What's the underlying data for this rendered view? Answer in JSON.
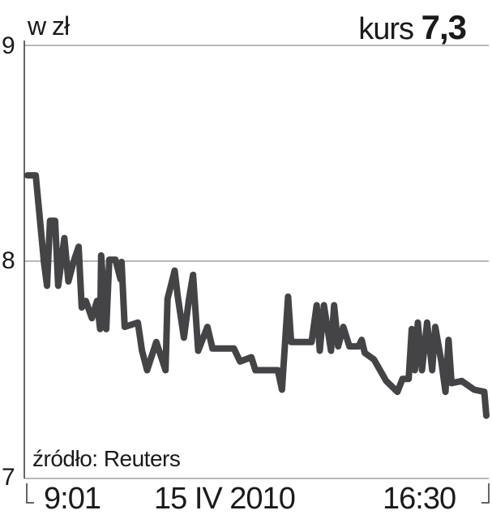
{
  "chart_data": {
    "type": "line",
    "title": "kurs 7,3",
    "title_prefix": "kurs",
    "title_value": "7,3",
    "ylabel": "w zł",
    "ylim": [
      7,
      9
    ],
    "yticks": [
      "9",
      "8",
      "7"
    ],
    "ytick_values": [
      9,
      8,
      7
    ],
    "grid": true,
    "xlim": [
      "9:01",
      "16:30"
    ],
    "xtick_labels": [
      "9:01",
      "16:30"
    ],
    "date_label": "15 IV 2010",
    "source": "źródło: Reuters",
    "line_color": "#444446",
    "grid_color": "#a0a0a0",
    "series": [
      {
        "x": [
          "9:01",
          "9:09",
          "9:17",
          "9:20",
          "9:23",
          "9:28",
          "9:31",
          "9:37",
          "9:41",
          "9:46",
          "9:51",
          "9:54",
          "9:58",
          "10:04",
          "10:09",
          "10:12",
          "10:13",
          "10:18",
          "10:21",
          "10:27",
          "10:32",
          "10:33",
          "10:36",
          "10:49",
          "10:53",
          "10:58",
          "11:07",
          "11:16",
          "11:18",
          "11:25",
          "11:28",
          "11:34",
          "11:39",
          "11:43",
          "11:48",
          "11:57",
          "12:02",
          "12:23",
          "12:29",
          "12:40",
          "12:44",
          "13:06",
          "13:10",
          "13:16",
          "13:19",
          "13:39",
          "13:44",
          "13:47",
          "13:51",
          "13:58",
          "14:01",
          "14:05",
          "14:10",
          "14:16",
          "14:25",
          "14:28",
          "14:31",
          "14:40",
          "14:46",
          "14:52",
          "15:03",
          "15:08",
          "15:14",
          "15:17",
          "15:20",
          "15:23",
          "15:27",
          "15:32",
          "15:37",
          "15:40",
          "15:46",
          "15:50",
          "15:53",
          "15:56",
          "16:06",
          "16:18",
          "16:28",
          "16:30"
        ],
        "y": [
          8.4,
          8.4,
          8.0,
          7.89,
          8.19,
          8.19,
          7.89,
          8.11,
          7.91,
          8.0,
          8.07,
          7.79,
          7.82,
          7.74,
          7.82,
          7.69,
          8.03,
          7.69,
          8.01,
          8.01,
          7.92,
          8.0,
          7.7,
          7.72,
          7.59,
          7.5,
          7.63,
          7.5,
          7.83,
          7.96,
          7.84,
          7.65,
          7.83,
          7.94,
          7.59,
          7.7,
          7.6,
          7.6,
          7.54,
          7.56,
          7.5,
          7.5,
          7.41,
          7.84,
          7.63,
          7.63,
          7.8,
          7.59,
          7.8,
          7.59,
          7.8,
          7.61,
          7.7,
          7.61,
          7.61,
          7.64,
          7.58,
          7.55,
          7.5,
          7.45,
          7.4,
          7.46,
          7.46,
          7.69,
          7.5,
          7.72,
          7.5,
          7.72,
          7.5,
          7.7,
          7.54,
          7.4,
          7.64,
          7.44,
          7.45,
          7.41,
          7.4,
          7.29
        ]
      }
    ]
  }
}
